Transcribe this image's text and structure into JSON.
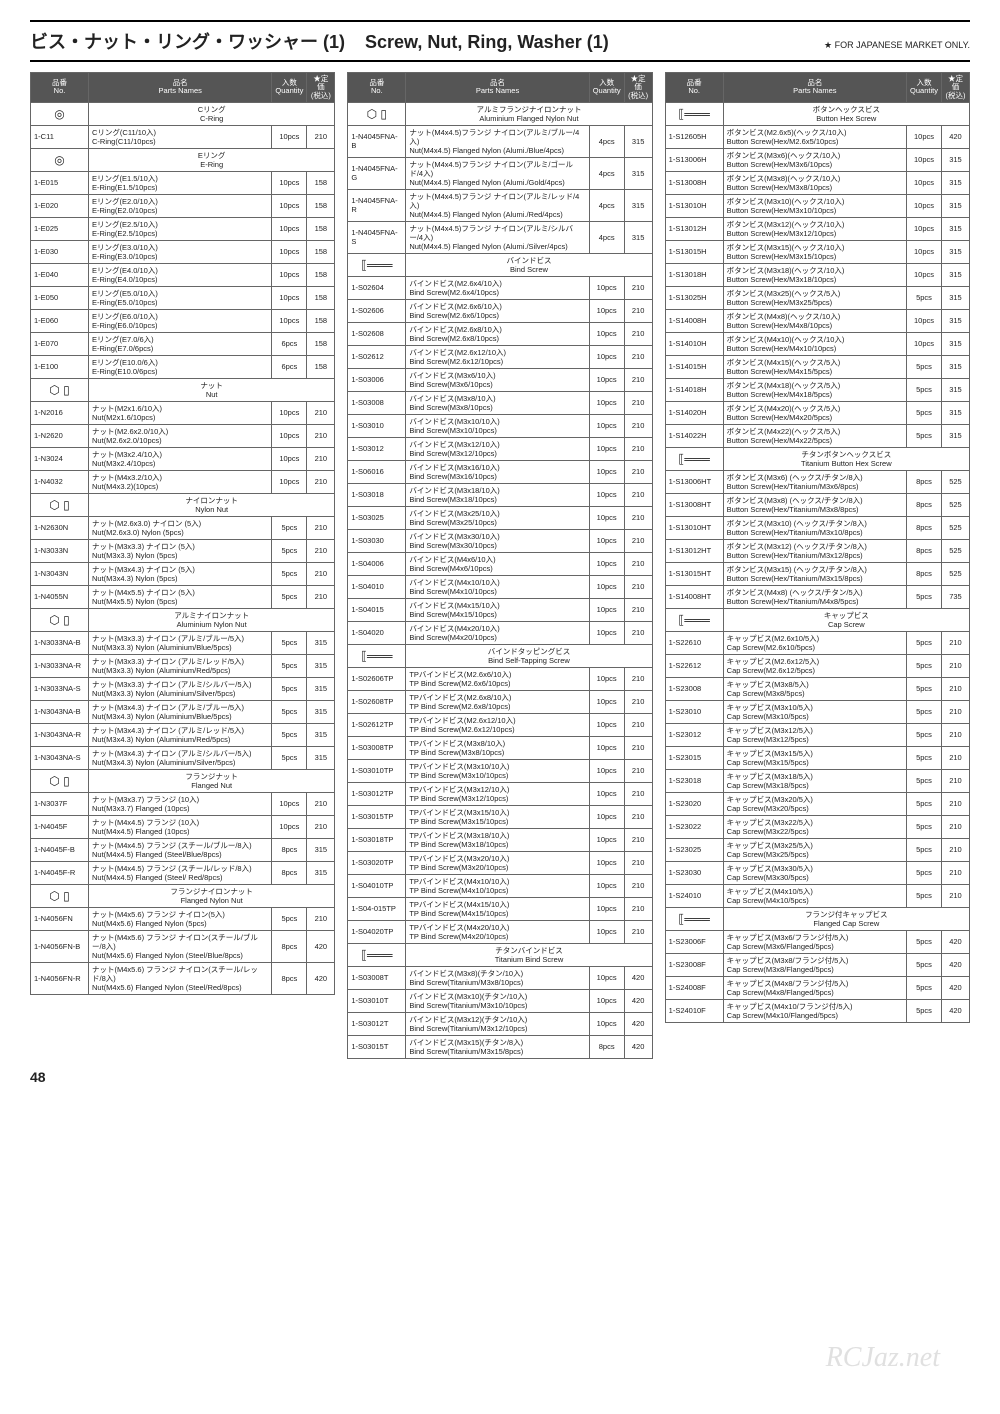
{
  "header": {
    "jp": "ビス・ナット・リング・ワッシャー (1)",
    "en": "Screw, Nut, Ring, Washer (1)",
    "note": "★ FOR JAPANESE MARKET ONLY."
  },
  "table_header": {
    "no": "品番\nNo.",
    "name": "品名\nParts Names",
    "qty": "入数\nQuantity",
    "price": "★定価\n(税込)"
  },
  "col1": {
    "sections": [
      {
        "icon": "◎",
        "jp": "Cリング",
        "en": "C-Ring",
        "rows": [
          [
            "1-C11",
            "Cリング(C11/10入)\nC-Ring(C11/10pcs)",
            "10pcs",
            "210"
          ]
        ]
      },
      {
        "icon": "◎",
        "jp": "Eリング",
        "en": "E-Ring",
        "rows": [
          [
            "1-E015",
            "Eリング(E1.5/10入)\nE-Ring(E1.5/10pcs)",
            "10pcs",
            "158"
          ],
          [
            "1-E020",
            "Eリング(E2.0/10入)\nE-Ring(E2.0/10pcs)",
            "10pcs",
            "158"
          ],
          [
            "1-E025",
            "Eリング(E2.5/10入)\nE-Ring(E2.5/10pcs)",
            "10pcs",
            "158"
          ],
          [
            "1-E030",
            "Eリング(E3.0/10入)\nE-Ring(E3.0/10pcs)",
            "10pcs",
            "158"
          ],
          [
            "1-E040",
            "Eリング(E4.0/10入)\nE-Ring(E4.0/10pcs)",
            "10pcs",
            "158"
          ],
          [
            "1-E050",
            "Eリング(E5.0/10入)\nE-Ring(E5.0/10pcs)",
            "10pcs",
            "158"
          ],
          [
            "1-E060",
            "Eリング(E6.0/10入)\nE-Ring(E6.0/10pcs)",
            "10pcs",
            "158"
          ],
          [
            "1-E070",
            "Eリング(E7.0/6入)\nE-Ring(E7.0/6pcs)",
            "6pcs",
            "158"
          ],
          [
            "1-E100",
            "Eリング(E10.0/6入)\nE-Ring(E10.0/6pcs)",
            "6pcs",
            "158"
          ]
        ]
      },
      {
        "icon": "⬡ ▯",
        "jp": "ナット",
        "en": "Nut",
        "rows": [
          [
            "1-N2016",
            "ナット(M2x1.6/10入)\nNut(M2x1.6/10pcs)",
            "10pcs",
            "210"
          ],
          [
            "1-N2620",
            "ナット(M2.6x2.0/10入)\nNut(M2.6x2.0/10pcs)",
            "10pcs",
            "210"
          ],
          [
            "1-N3024",
            "ナット(M3x2.4/10入)\nNut(M3x2.4/10pcs)",
            "10pcs",
            "210"
          ],
          [
            "1-N4032",
            "ナット(M4x3.2/10入)\nNut(M4x3.2)(10pcs)",
            "10pcs",
            "210"
          ]
        ]
      },
      {
        "icon": "⬡ ▯",
        "jp": "ナイロンナット",
        "en": "Nylon Nut",
        "rows": [
          [
            "1-N2630N",
            "ナット(M2.6x3.0) ナイロン (5入)\nNut(M2.6x3.0) Nylon (5pcs)",
            "5pcs",
            "210"
          ],
          [
            "1-N3033N",
            "ナット(M3x3.3) ナイロン (5入)\nNut(M3x3.3) Nylon (5pcs)",
            "5pcs",
            "210"
          ],
          [
            "1-N3043N",
            "ナット(M3x4.3) ナイロン (5入)\nNut(M3x4.3) Nylon (5pcs)",
            "5pcs",
            "210"
          ],
          [
            "1-N4055N",
            "ナット(M4x5.5) ナイロン (5入)\nNut(M4x5.5) Nylon (5pcs)",
            "5pcs",
            "210"
          ]
        ]
      },
      {
        "icon": "⬡ ▯",
        "jp": "アルミナイロンナット",
        "en": "Aluminium Nylon Nut",
        "rows": [
          [
            "1-N3033NA-B",
            "ナット(M3x3.3) ナイロン (アルミ/ブルー/5入)\nNut(M3x3.3) Nylon (Aluminium/Blue/5pcs)",
            "5pcs",
            "315"
          ],
          [
            "1-N3033NA-R",
            "ナット(M3x3.3) ナイロン (アルミ/レッド/5入)\nNut(M3x3.3) Nylon (Aluminium/Red/5pcs)",
            "5pcs",
            "315"
          ],
          [
            "1-N3033NA-S",
            "ナット(M3x3.3) ナイロン (アルミ/シルバー/5入)\nNut(M3x3.3) Nylon (Aluminium/Silver/5pcs)",
            "5pcs",
            "315"
          ],
          [
            "1-N3043NA-B",
            "ナット(M3x4.3) ナイロン (アルミ/ブルー/5入)\nNut(M3x4.3) Nylon (Aluminium/Blue/5pcs)",
            "5pcs",
            "315"
          ],
          [
            "1-N3043NA-R",
            "ナット(M3x4.3) ナイロン (アルミ/レッド/5入)\nNut(M3x4.3) Nylon (Aluminium/Red/5pcs)",
            "5pcs",
            "315"
          ],
          [
            "1-N3043NA-S",
            "ナット(M3x4.3) ナイロン (アルミ/シルバー/5入)\nNut(M3x4.3) Nylon (Aluminium/Silver/5pcs)",
            "5pcs",
            "315"
          ]
        ]
      },
      {
        "icon": "⬡ ▯",
        "jp": "フランジナット",
        "en": "Flanged Nut",
        "rows": [
          [
            "1-N3037F",
            "ナット(M3x3.7) フランジ (10入)\nNut(M3x3.7) Flanged (10pcs)",
            "10pcs",
            "210"
          ],
          [
            "1-N4045F",
            "ナット(M4x4.5) フランジ (10入)\nNut(M4x4.5) Flanged (10pcs)",
            "10pcs",
            "210"
          ],
          [
            "1-N4045F-B",
            "ナット(M4x4.5) フランジ (スチール/ブルー/8入)\nNut(M4x4.5) Flanged (Steel/Blue/8pcs)",
            "8pcs",
            "315"
          ],
          [
            "1-N4045F-R",
            "ナット(M4x4.5) フランジ (スチール/レッド/8入)\nNut(M4x4.5) Flanged (Steel/ Red/8pcs)",
            "8pcs",
            "315"
          ]
        ]
      },
      {
        "icon": "⬡ ▯",
        "jp": "フランジナイロンナット",
        "en": "Flanged Nylon Nut",
        "rows": [
          [
            "1-N4056FN",
            "ナット(M4x5.6) フランジ ナイロン(5入)\nNut(M4x5.6) Flanged Nylon (5pcs)",
            "5pcs",
            "210"
          ],
          [
            "1-N4056FN-B",
            "ナット(M4x5.6) フランジ ナイロン(スチール/ブルー/8入)\nNut(M4x5.6) Flanged Nylon (Steel/Blue/8pcs)",
            "8pcs",
            "420"
          ],
          [
            "1-N4056FN-R",
            "ナット(M4x5.6) フランジ ナイロン(スチール/レッド/8入)\nNut(M4x5.6) Flanged Nylon (Steel/Red/8pcs)",
            "8pcs",
            "420"
          ]
        ]
      }
    ]
  },
  "col2": {
    "sections": [
      {
        "icon": "⬡ ▯",
        "jp": "アルミフランジナイロンナット",
        "en": "Aluminium Flanged Nylon Nut",
        "rows": [
          [
            "1-N4045FNA-B",
            "ナット(M4x4.5)フランジ ナイロン(アルミ/ブルー/4入)\nNut(M4x4.5) Flanged Nylon (Alumi./Blue/4pcs)",
            "4pcs",
            "315"
          ],
          [
            "1-N4045FNA-G",
            "ナット(M4x4.5)フランジ ナイロン(アルミ/ゴールド/4入)\nNut(M4x4.5) Flanged Nylon (Alumi./Gold/4pcs)",
            "4pcs",
            "315"
          ],
          [
            "1-N4045FNA-R",
            "ナット(M4x4.5)フランジ ナイロン(アルミ/レッド/4入)\nNut(M4x4.5) Flanged Nylon (Alumi./Red/4pcs)",
            "4pcs",
            "315"
          ],
          [
            "1-N4045FNA-S",
            "ナット(M4x4.5)フランジ ナイロン(アルミ/シルバー/4入)\nNut(M4x4.5) Flanged Nylon (Alumi./Silver/4pcs)",
            "4pcs",
            "315"
          ]
        ]
      },
      {
        "icon": "⟦═══",
        "jp": "バインドビス",
        "en": "Bind Screw",
        "rows": [
          [
            "1-S02604",
            "バインドビス(M2.6x4/10入)\nBind Screw(M2.6x4/10pcs)",
            "10pcs",
            "210"
          ],
          [
            "1-S02606",
            "バインドビス(M2.6x6/10入)\nBind Screw(M2.6x6/10pcs)",
            "10pcs",
            "210"
          ],
          [
            "1-S02608",
            "バインドビス(M2.6x8/10入)\nBind Screw(M2.6x8/10pcs)",
            "10pcs",
            "210"
          ],
          [
            "1-S02612",
            "バインドビス(M2.6x12/10入)\nBind Screw(M2.6x12/10pcs)",
            "10pcs",
            "210"
          ],
          [
            "1-S03006",
            "バインドビス(M3x6/10入)\nBind Screw(M3x6/10pcs)",
            "10pcs",
            "210"
          ],
          [
            "1-S03008",
            "バインドビス(M3x8/10入)\nBind Screw(M3x8/10pcs)",
            "10pcs",
            "210"
          ],
          [
            "1-S03010",
            "バインドビス(M3x10/10入)\nBind Screw(M3x10/10pcs)",
            "10pcs",
            "210"
          ],
          [
            "1-S03012",
            "バインドビス(M3x12/10入)\nBind Screw(M3x12/10pcs)",
            "10pcs",
            "210"
          ],
          [
            "1-S06016",
            "バインドビス(M3x16/10入)\nBind Screw(M3x16/10pcs)",
            "10pcs",
            "210"
          ],
          [
            "1-S03018",
            "バインドビス(M3x18/10入)\nBind Screw(M3x18/10pcs)",
            "10pcs",
            "210"
          ],
          [
            "1-S03025",
            "バインドビス(M3x25/10入)\nBind Screw(M3x25/10pcs)",
            "10pcs",
            "210"
          ],
          [
            "1-S03030",
            "バインドビス(M3x30/10入)\nBind Screw(M3x30/10pcs)",
            "10pcs",
            "210"
          ],
          [
            "1-S04006",
            "バインドビス(M4x6/10入)\nBind Screw(M4x6/10pcs)",
            "10pcs",
            "210"
          ],
          [
            "1-S04010",
            "バインドビス(M4x10/10入)\nBind Screw(M4x10/10pcs)",
            "10pcs",
            "210"
          ],
          [
            "1-S04015",
            "バインドビス(M4x15/10入)\nBind Screw(M4x15/10pcs)",
            "10pcs",
            "210"
          ],
          [
            "1-S04020",
            "バインドビス(M4x20/10入)\nBind Screw(M4x20/10pcs)",
            "10pcs",
            "210"
          ]
        ]
      },
      {
        "icon": "⟦═══",
        "jp": "バインドタッピングビス",
        "en": "Bind Self-Tapping Screw",
        "rows": [
          [
            "1-S02606TP",
            "TPバインドビス(M2.6x6/10入)\nTP Bind Screw(M2.6x6/10pcs)",
            "10pcs",
            "210"
          ],
          [
            "1-S02608TP",
            "TPバインドビス(M2.6x8/10入)\nTP Bind Screw(M2.6x8/10pcs)",
            "10pcs",
            "210"
          ],
          [
            "1-S02612TP",
            "TPバインドビス(M2.6x12/10入)\nTP Bind Screw(M2.6x12/10pcs)",
            "10pcs",
            "210"
          ],
          [
            "1-S03008TP",
            "TPバインドビス(M3x8/10入)\nTP Bind Screw(M3x8/10pcs)",
            "10pcs",
            "210"
          ],
          [
            "1-S03010TP",
            "TPバインドビス(M3x10/10入)\nTP Bind Screw(M3x10/10pcs)",
            "10pcs",
            "210"
          ],
          [
            "1-S03012TP",
            "TPバインドビス(M3x12/10入)\nTP Bind Screw(M3x12/10pcs)",
            "10pcs",
            "210"
          ],
          [
            "1-S03015TP",
            "TPバインドビス(M3x15/10入)\nTP Bind Screw(M3x15/10pcs)",
            "10pcs",
            "210"
          ],
          [
            "1-S03018TP",
            "TPバインドビス(M3x18/10入)\nTP Bind Screw(M3x18/10pcs)",
            "10pcs",
            "210"
          ],
          [
            "1-S03020TP",
            "TPバインドビス(M3x20/10入)\nTP Bind Screw(M3x20/10pcs)",
            "10pcs",
            "210"
          ],
          [
            "1-S04010TP",
            "TPバインドビス(M4x10/10入)\nTP Bind Screw(M4x10/10pcs)",
            "10pcs",
            "210"
          ],
          [
            "1-S04-015TP",
            "TPバインドビス(M4x15/10入)\nTP Bind Screw(M4x15/10pcs)",
            "10pcs",
            "210"
          ],
          [
            "1-S04020TP",
            "TPバインドビス(M4x20/10入)\nTP Bind Screw(M4x20/10pcs)",
            "10pcs",
            "210"
          ]
        ]
      },
      {
        "icon": "⟦═══",
        "jp": "チタンバインドビス",
        "en": "Titanium Bind Screw",
        "rows": [
          [
            "1-S03008T",
            "バインドビス(M3x8)(チタン/10入)\nBind Screw(Titanium/M3x8/10pcs)",
            "10pcs",
            "420"
          ],
          [
            "1-S03010T",
            "バインドビス(M3x10)(チタン/10入)\nBind Screw(Titanium/M3x10/10pcs)",
            "10pcs",
            "420"
          ],
          [
            "1-S03012T",
            "バインドビス(M3x12)(チタン/10入)\nBind Screw(Titanium/M3x12/10pcs)",
            "10pcs",
            "420"
          ],
          [
            "1-S03015T",
            "バインドビス(M3x15)(チタン/8入)\nBind Screw(Titanium/M3x15/8pcs)",
            "8pcs",
            "420"
          ]
        ]
      }
    ]
  },
  "col3": {
    "sections": [
      {
        "icon": "⟦═══",
        "jp": "ボタンヘックスビス",
        "en": "Button Hex Screw",
        "rows": [
          [
            "1-S12605H",
            "ボタンビス(M2.6x5)(ヘックス/10入)\nButton Screw(Hex/M2.6x5/10pcs)",
            "10pcs",
            "420"
          ],
          [
            "1-S13006H",
            "ボタンビス(M3x6)(ヘックス/10入)\nButton Screw(Hex/M3x6/10pcs)",
            "10pcs",
            "315"
          ],
          [
            "1-S13008H",
            "ボタンビス(M3x8)(ヘックス/10入)\nButton Screw(Hex/M3x8/10pcs)",
            "10pcs",
            "315"
          ],
          [
            "1-S13010H",
            "ボタンビス(M3x10)(ヘックス/10入)\nButton Screw(Hex/M3x10/10pcs)",
            "10pcs",
            "315"
          ],
          [
            "1-S13012H",
            "ボタンビス(M3x12)(ヘックス/10入)\nButton Screw(Hex/M3x12/10pcs)",
            "10pcs",
            "315"
          ],
          [
            "1-S13015H",
            "ボタンビス(M3x15)(ヘックス/10入)\nButton Screw(Hex/M3x15/10pcs)",
            "10pcs",
            "315"
          ],
          [
            "1-S13018H",
            "ボタンビス(M3x18)(ヘックス/10入)\nButton Screw(Hex/M3x18/10pcs)",
            "10pcs",
            "315"
          ],
          [
            "1-S13025H",
            "ボタンビス(M3x25)(ヘックス/5入)\nButton Screw(Hex/M3x25/5pcs)",
            "5pcs",
            "315"
          ],
          [
            "1-S14008H",
            "ボタンビス(M4x8)(ヘックス/10入)\nButton Screw(Hex/M4x8/10pcs)",
            "10pcs",
            "315"
          ],
          [
            "1-S14010H",
            "ボタンビス(M4x10)(ヘックス/10入)\nButton Screw(Hex/M4x10/10pcs)",
            "10pcs",
            "315"
          ],
          [
            "1-S14015H",
            "ボタンビス(M4x15)(ヘックス/5入)\nButton Screw(Hex/M4x15/5pcs)",
            "5pcs",
            "315"
          ],
          [
            "1-S14018H",
            "ボタンビス(M4x18)(ヘックス/5入)\nButton Screw(Hex/M4x18/5pcs)",
            "5pcs",
            "315"
          ],
          [
            "1-S14020H",
            "ボタンビス(M4x20)(ヘックス/5入)\nButton Screw(Hex/M4x20/5pcs)",
            "5pcs",
            "315"
          ],
          [
            "1-S14022H",
            "ボタンビス(M4x22)(ヘックス/5入)\nButton Screw(Hex/M4x22/5pcs)",
            "5pcs",
            "315"
          ]
        ]
      },
      {
        "icon": "⟦═══",
        "jp": "チタンボタンヘックスビス",
        "en": "Titanium Button Hex Screw",
        "rows": [
          [
            "1-S13006HT",
            "ボタンビス(M3x6) (ヘックス/チタン/8入)\nButton Screw(Hex/Titanium/M3x6/8pcs)",
            "8pcs",
            "525"
          ],
          [
            "1-S13008HT",
            "ボタンビス(M3x8) (ヘックス/チタン/8入)\nButton Screw(Hex/Titanium/M3x8/8pcs)",
            "8pcs",
            "525"
          ],
          [
            "1-S13010HT",
            "ボタンビス(M3x10) (ヘックス/チタン/8入)\nButton Screw(Hex/Titanium/M3x10/8pcs)",
            "8pcs",
            "525"
          ],
          [
            "1-S13012HT",
            "ボタンビス(M3x12) (ヘックス/チタン/8入)\nButton Screw(Hex/Titanium/M3x12/8pcs)",
            "8pcs",
            "525"
          ],
          [
            "1-S13015HT",
            "ボタンビス(M3x15) (ヘックス/チタン/8入)\nButton Screw(Hex/Titanium/M3x15/8pcs)",
            "8pcs",
            "525"
          ],
          [
            "1-S14008HT",
            "ボタンビス(M4x8) (ヘックス/チタン/5入)\nButton Screw(Hex/Titanium/M4x8/5pcs)",
            "5pcs",
            "735"
          ]
        ]
      },
      {
        "icon": "⟦═══",
        "jp": "キャップビス",
        "en": "Cap Screw",
        "rows": [
          [
            "1-S22610",
            "キャップビス(M2.6x10/5入)\nCap Screw(M2.6x10/5pcs)",
            "5pcs",
            "210"
          ],
          [
            "1-S22612",
            "キャップビス(M2.6x12/5入)\nCap Screw(M2.6x12/5pcs)",
            "5pcs",
            "210"
          ],
          [
            "1-S23008",
            "キャップビス(M3x8/5入)\nCap Screw(M3x8/5pcs)",
            "5pcs",
            "210"
          ],
          [
            "1-S23010",
            "キャップビス(M3x10/5入)\nCap Screw(M3x10/5pcs)",
            "5pcs",
            "210"
          ],
          [
            "1-S23012",
            "キャップビス(M3x12/5入)\nCap Screw(M3x12/5pcs)",
            "5pcs",
            "210"
          ],
          [
            "1-S23015",
            "キャップビス(M3x15/5入)\nCap Screw(M3x15/5pcs)",
            "5pcs",
            "210"
          ],
          [
            "1-S23018",
            "キャップビス(M3x18/5入)\nCap Screw(M3x18/5pcs)",
            "5pcs",
            "210"
          ],
          [
            "1-S23020",
            "キャップビス(M3x20/5入)\nCap Screw(M3x20/5pcs)",
            "5pcs",
            "210"
          ],
          [
            "1-S23022",
            "キャップビス(M3x22/5入)\nCap Screw(M3x22/5pcs)",
            "5pcs",
            "210"
          ],
          [
            "1-S23025",
            "キャップビス(M3x25/5入)\nCap Screw(M3x25/5pcs)",
            "5pcs",
            "210"
          ],
          [
            "1-S23030",
            "キャップビス(M3x30/5入)\nCap Screw(M3x30/5pcs)",
            "5pcs",
            "210"
          ],
          [
            "1-S24010",
            "キャップビス(M4x10/5入)\nCap Screw(M4x10/5pcs)",
            "5pcs",
            "210"
          ]
        ]
      },
      {
        "icon": "⟦═══",
        "jp": "フランジ付キャップビス",
        "en": "Flanged Cap Screw",
        "rows": [
          [
            "1-S23006F",
            "キャップビス(M3x6/フランジ付/5入)\nCap Screw(M3x6/Flanged/5pcs)",
            "5pcs",
            "420"
          ],
          [
            "1-S23008F",
            "キャップビス(M3x8/フランジ付/5入)\nCap Screw(M3x8/Flanged/5pcs)",
            "5pcs",
            "420"
          ],
          [
            "1-S24008F",
            "キャップビス(M4x8/フランジ付/5入)\nCap Screw(M4x8/Flanged/5pcs)",
            "5pcs",
            "420"
          ],
          [
            "1-S24010F",
            "キャップビス(M4x10/フランジ付/5入)\nCap Screw(M4x10/Flanged/5pcs)",
            "5pcs",
            "420"
          ]
        ]
      }
    ]
  },
  "pagenum": "48",
  "watermark": "RCJaz.net"
}
